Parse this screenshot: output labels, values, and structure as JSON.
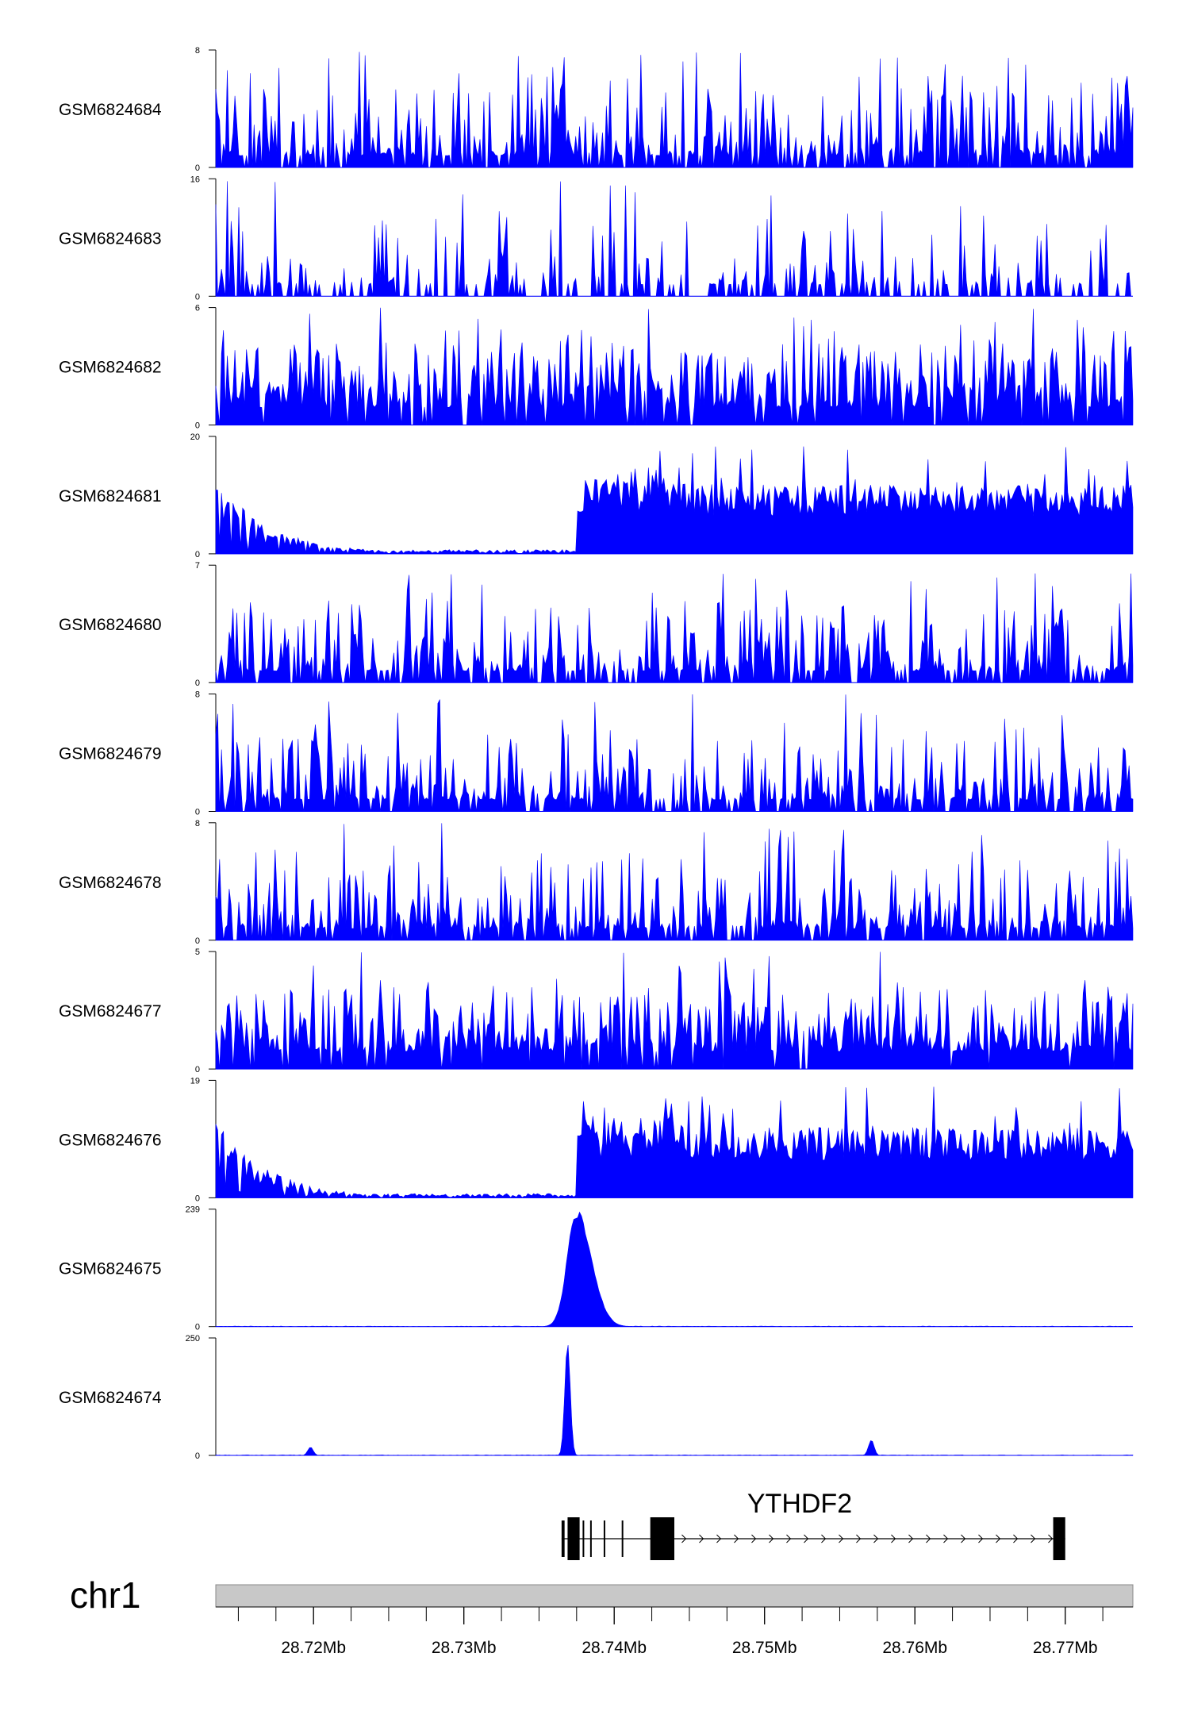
{
  "colors": {
    "signal": "#0000ff",
    "gene": "#000000",
    "ideogram": "#c8c8c8",
    "axis": "#000000"
  },
  "chart_data": {
    "type": "area",
    "x_range_mb": [
      28.7135,
      28.7745
    ],
    "tracks": [
      {
        "name": "GSM6824684",
        "ymax": 8,
        "ymin": 0,
        "profile": "uniform"
      },
      {
        "name": "GSM6824683",
        "ymax": 16,
        "ymin": 0,
        "profile": "sparse"
      },
      {
        "name": "GSM6824682",
        "ymax": 6,
        "ymin": 0,
        "profile": "dense"
      },
      {
        "name": "GSM6824681",
        "ymax": 20,
        "ymin": 0,
        "profile": "step"
      },
      {
        "name": "GSM6824680",
        "ymax": 7,
        "ymin": 0,
        "profile": "uniform"
      },
      {
        "name": "GSM6824679",
        "ymax": 8,
        "ymin": 0,
        "profile": "uniform"
      },
      {
        "name": "GSM6824678",
        "ymax": 8,
        "ymin": 0,
        "profile": "uniform"
      },
      {
        "name": "GSM6824677",
        "ymax": 5,
        "ymin": 0,
        "profile": "dense"
      },
      {
        "name": "GSM6824676",
        "ymax": 19,
        "ymin": 0,
        "profile": "step"
      },
      {
        "name": "GSM6824675",
        "ymax": 239,
        "ymin": 0,
        "profile": "broad-peak",
        "peaks": [
          {
            "x_mb": 28.7375,
            "value": 239
          }
        ]
      },
      {
        "name": "GSM6824674",
        "ymax": 250,
        "ymin": 0,
        "profile": "sharp-peak",
        "peaks": [
          {
            "x_mb": 28.7369,
            "value": 250
          },
          {
            "x_mb": 28.7198,
            "value": 18
          },
          {
            "x_mb": 28.7571,
            "value": 35
          }
        ]
      }
    ],
    "gene": {
      "name": "YTHDF2",
      "start_mb": 28.7365,
      "end_mb": 28.77,
      "strand": "+",
      "exons_mb": [
        [
          28.7365,
          28.7367
        ],
        [
          28.7369,
          28.7377
        ],
        [
          28.7379,
          28.738
        ],
        [
          28.7384,
          28.7385
        ],
        [
          28.7393,
          28.7394
        ],
        [
          28.7405,
          28.7406
        ],
        [
          28.7424,
          28.744
        ],
        [
          28.7692,
          28.77
        ]
      ]
    },
    "chromosome": "chr1",
    "x_ticks": [
      {
        "pos": 28.72,
        "label": "28.72Mb"
      },
      {
        "pos": 28.73,
        "label": "28.73Mb"
      },
      {
        "pos": 28.74,
        "label": "28.74Mb"
      },
      {
        "pos": 28.75,
        "label": "28.75Mb"
      },
      {
        "pos": 28.76,
        "label": "28.76Mb"
      },
      {
        "pos": 28.77,
        "label": "28.77Mb"
      }
    ]
  }
}
